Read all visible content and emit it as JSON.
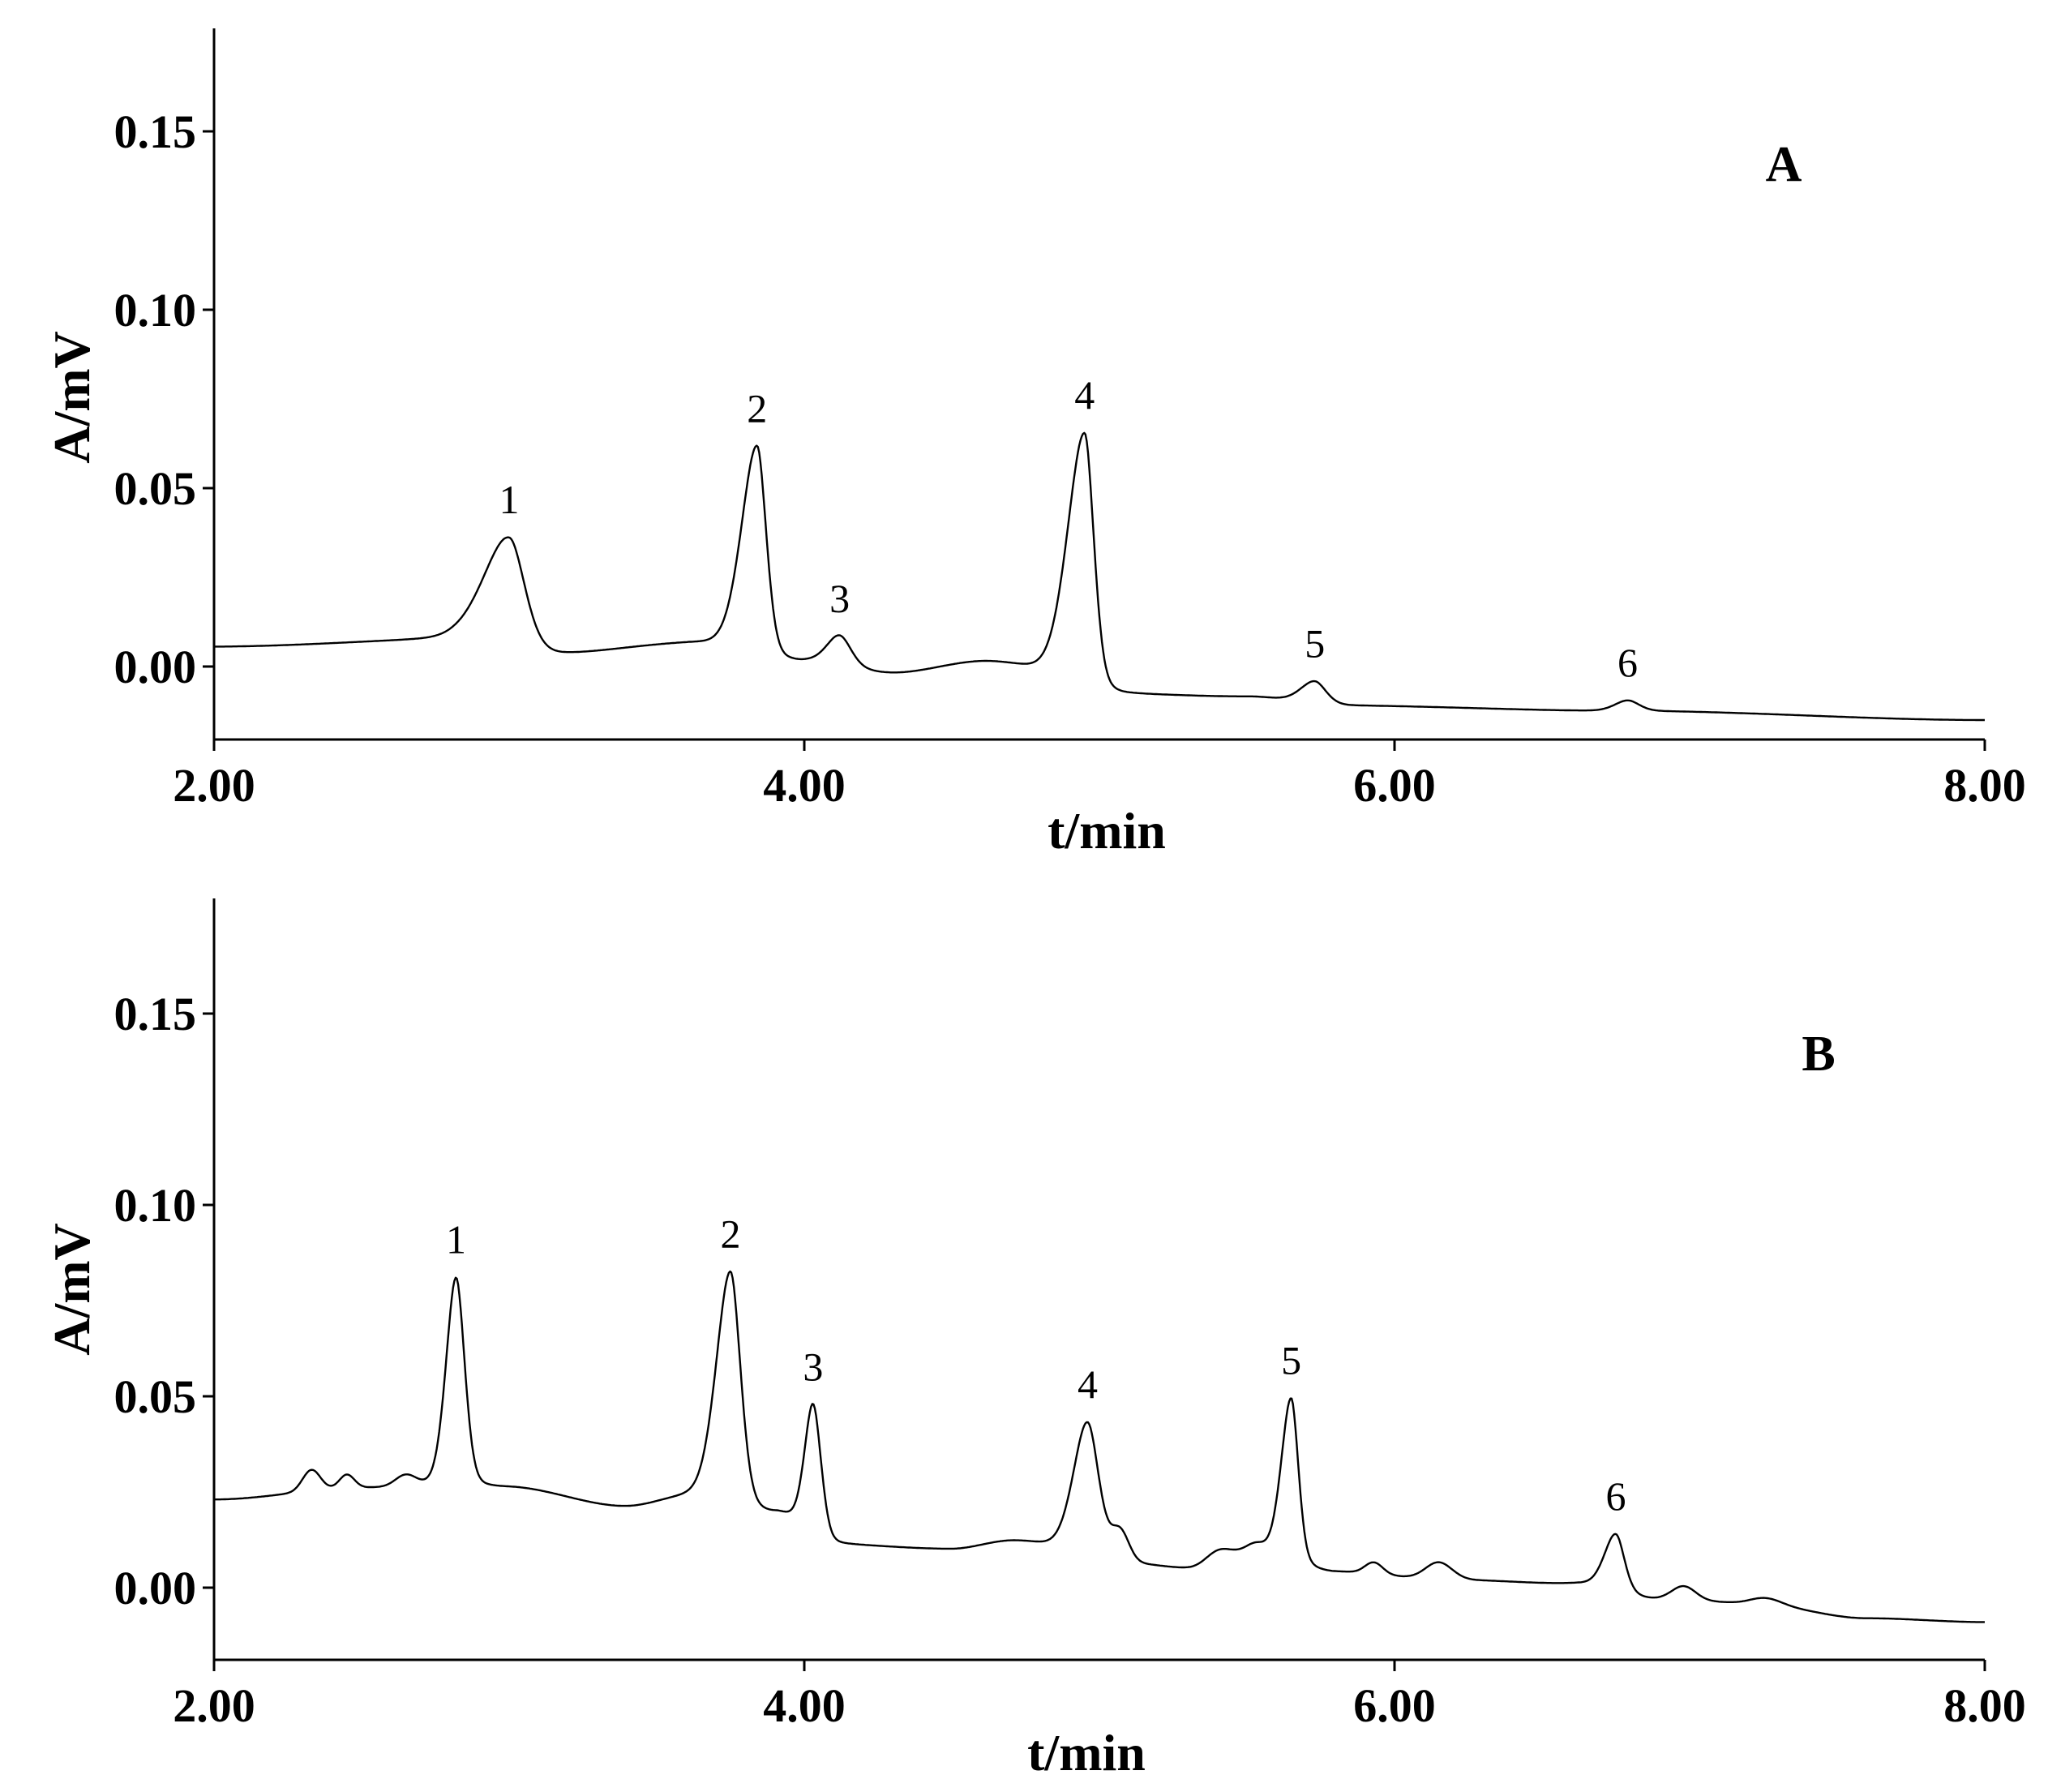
{
  "chart_data": [
    {
      "type": "line",
      "panel_label": "A",
      "xlabel": "t/min",
      "ylabel": "A/mV",
      "xlim": [
        2.0,
        8.0
      ],
      "ylim": [
        -0.02,
        0.18
      ],
      "x_ticks": [
        "2.00",
        "4.00",
        "6.00",
        "8.00"
      ],
      "y_ticks": [
        "0.00",
        "0.05",
        "0.10",
        "0.15"
      ],
      "grid": false,
      "series": [
        {
          "baseline": [
            [
              2.0,
              0.0055
            ],
            [
              2.8,
              0.0072
            ],
            [
              3.1,
              0.003
            ],
            [
              3.6,
              0.006
            ],
            [
              4.0,
              0.001
            ],
            [
              4.3,
              -0.002
            ],
            [
              4.6,
              0.001
            ],
            [
              5.1,
              -0.008
            ],
            [
              5.5,
              -0.0085
            ],
            [
              5.8,
              -0.011
            ],
            [
              6.8,
              -0.0125
            ],
            [
              8.0,
              -0.015
            ]
          ],
          "peaks": [
            {
              "label": "1",
              "t": 3.0,
              "height": 0.032,
              "wl": 0.09,
              "wr": 0.055
            },
            {
              "label": "2",
              "t": 3.84,
              "height": 0.059,
              "wl": 0.055,
              "wr": 0.032
            },
            {
              "label": "3",
              "t": 4.12,
              "height": 0.0085,
              "wl": 0.045,
              "wr": 0.04
            },
            {
              "label": "4",
              "t": 4.95,
              "height": 0.0715,
              "wl": 0.06,
              "wr": 0.032
            },
            {
              "label": "5",
              "t": 5.73,
              "height": 0.0065,
              "wl": 0.05,
              "wr": 0.04
            },
            {
              "label": "6",
              "t": 6.79,
              "height": 0.003,
              "wl": 0.045,
              "wr": 0.04
            }
          ],
          "bumps": []
        }
      ]
    },
    {
      "type": "line",
      "panel_label": "B",
      "xlabel": "t/min",
      "ylabel": "A/mV",
      "xlim": [
        2.0,
        8.0
      ],
      "ylim": [
        -0.02,
        0.18
      ],
      "x_ticks": [
        "2.00",
        "4.00",
        "6.00",
        "8.00"
      ],
      "y_ticks": [
        "0.00",
        "0.05",
        "0.10",
        "0.15"
      ],
      "grid": false,
      "series": [
        {
          "baseline": [
            [
              2.0,
              0.023
            ],
            [
              2.5,
              0.026
            ],
            [
              2.75,
              0.026
            ],
            [
              3.0,
              0.026
            ],
            [
              3.4,
              0.021
            ],
            [
              3.6,
              0.023
            ],
            [
              3.9,
              0.019
            ],
            [
              4.1,
              0.011
            ],
            [
              4.5,
              0.01
            ],
            [
              4.7,
              0.012
            ],
            [
              5.1,
              0.006
            ],
            [
              5.3,
              0.005
            ],
            [
              5.5,
              0.009
            ],
            [
              5.8,
              0.004
            ],
            [
              6.2,
              0.002
            ],
            [
              6.6,
              0.001
            ],
            [
              6.9,
              -0.003
            ],
            [
              7.2,
              -0.004
            ],
            [
              7.6,
              -0.008
            ],
            [
              8.0,
              -0.009
            ]
          ],
          "peaks": [
            {
              "label": "1",
              "t": 2.82,
              "height": 0.055,
              "wl": 0.035,
              "wr": 0.03
            },
            {
              "label": "2",
              "t": 3.75,
              "height": 0.0615,
              "wl": 0.05,
              "wr": 0.035
            },
            {
              "label": "3",
              "t": 4.03,
              "height": 0.0345,
              "wl": 0.03,
              "wr": 0.028
            },
            {
              "label": "4",
              "t": 4.96,
              "height": 0.0355,
              "wl": 0.05,
              "wr": 0.04
            },
            {
              "label": "5",
              "t": 5.65,
              "height": 0.043,
              "wl": 0.035,
              "wr": 0.025
            },
            {
              "label": "6",
              "t": 6.75,
              "height": 0.015,
              "wl": 0.04,
              "wr": 0.03
            }
          ],
          "bumps": [
            {
              "t": 2.33,
              "amp": 0.0055,
              "w": 0.03
            },
            {
              "t": 2.45,
              "amp": 0.0035,
              "w": 0.025
            },
            {
              "t": 2.65,
              "amp": 0.003,
              "w": 0.035
            },
            {
              "t": 5.07,
              "amp": 0.008,
              "w": 0.03
            },
            {
              "t": 5.4,
              "amp": 0.0025,
              "w": 0.04
            },
            {
              "t": 5.53,
              "amp": 0.002,
              "w": 0.03
            },
            {
              "t": 5.93,
              "amp": 0.003,
              "w": 0.03
            },
            {
              "t": 6.15,
              "amp": 0.0045,
              "w": 0.045
            },
            {
              "t": 6.98,
              "amp": 0.0035,
              "w": 0.04
            },
            {
              "t": 7.26,
              "amp": 0.0015,
              "w": 0.05
            }
          ]
        }
      ]
    }
  ]
}
